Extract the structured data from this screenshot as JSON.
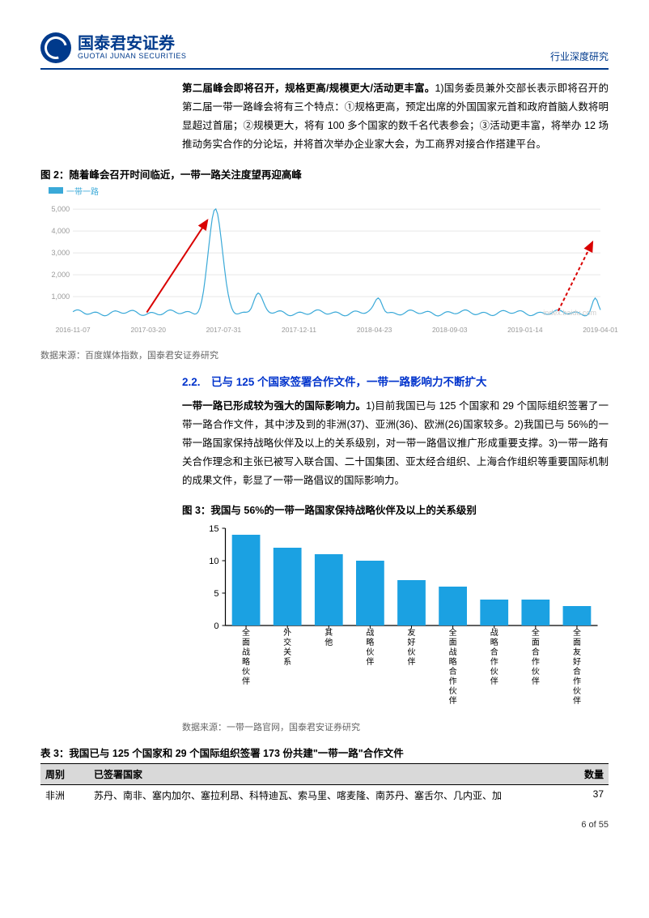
{
  "header": {
    "logo_cn": "国泰君安证券",
    "logo_en": "GUOTAI JUNAN SECURITIES",
    "doc_type": "行业深度研究"
  },
  "para1": {
    "lead": "第二届峰会即将召开，规格更高/规模更大/活动更丰富。",
    "body": "1)国务委员兼外交部长表示即将召开的第二届一带一路峰会将有三个特点：①规格更高，预定出席的外国国家元首和政府首脑人数将明显超过首届；②规模更大，将有 100 多个国家的数千名代表参会；③活动更丰富，将举办 12 场推动务实合作的分论坛，并将首次举办企业家大会，为工商界对接合作搭建平台。"
  },
  "fig2": {
    "title": "图 2：随着峰会召开时间临近，一带一路关注度望再迎高峰",
    "legend": "一带一路",
    "source": "数据来源：百度媒体指数，国泰君安证券研究",
    "y_ticks": [
      "1,000",
      "2,000",
      "3,000",
      "4,000",
      "5,000"
    ],
    "x_ticks": [
      "2016-11-07",
      "2017-03-20",
      "2017-07-31",
      "2017-12-11",
      "2018-04-23",
      "2018-09-03",
      "2019-01-14",
      "2019-04-01"
    ],
    "line_color": "#3aa9d8",
    "arrow_color": "#d90000",
    "grid_color": "#e6e6e6",
    "background_color": "#ffffff",
    "ylim": [
      0,
      5200
    ],
    "peak_value": 4800,
    "peak_x": 0.27,
    "watermark": "index.baidu.com"
  },
  "section22": "2.2.　已与 125 个国家签署合作文件，一带一路影响力不断扩大",
  "para2": {
    "lead": "一带一路已形成较为强大的国际影响力。",
    "body": "1)目前我国已与 125 个国家和 29 个国际组织签署了一带一路合作文件，其中涉及到的非洲(37)、亚洲(36)、欧洲(26)国家较多。2)我国已与 56%的一带一路国家保持战略伙伴及以上的关系级别，对一带一路倡议推广形成重要支撑。3)一带一路有关合作理念和主张已被写入联合国、二十国集团、亚太经合组织、上海合作组织等重要国际机制的成果文件，彰显了一带一路倡议的国际影响力。"
  },
  "fig3": {
    "title": "图 3：我国与 56%的一带一路国家保持战略伙伴及以上的关系级别",
    "source": "数据来源：一带一路官网，国泰君安证券研究",
    "categories": [
      "全面战略伙伴",
      "外交关系",
      "其他",
      "战略伙伴",
      "友好伙伴",
      "全面战略合作伙伴",
      "战略合作伙伴",
      "全面合作伙伴",
      "全面友好合作伙伴"
    ],
    "values": [
      14,
      12,
      11,
      10,
      7,
      6,
      4,
      4,
      3
    ],
    "bar_color": "#1ba1e2",
    "axis_color": "#000000",
    "label_fontsize": 10,
    "ylim": [
      0,
      15
    ],
    "ytick_step": 5,
    "bar_width": 0.68
  },
  "table3": {
    "title": "表 3：我国已与 125 个国家和 29 个国际组织签署 173 份共建\"一带一路\"合作文件",
    "col_region": "周别",
    "col_countries": "已签署国家",
    "col_count": "数量",
    "row1_region": "非洲",
    "row1_countries": "苏丹、南非、塞内加尔、塞拉利昂、科特迪瓦、索马里、喀麦隆、南苏丹、塞舌尔、几内亚、加",
    "row1_count": "37"
  },
  "pageno": "6 of 55"
}
